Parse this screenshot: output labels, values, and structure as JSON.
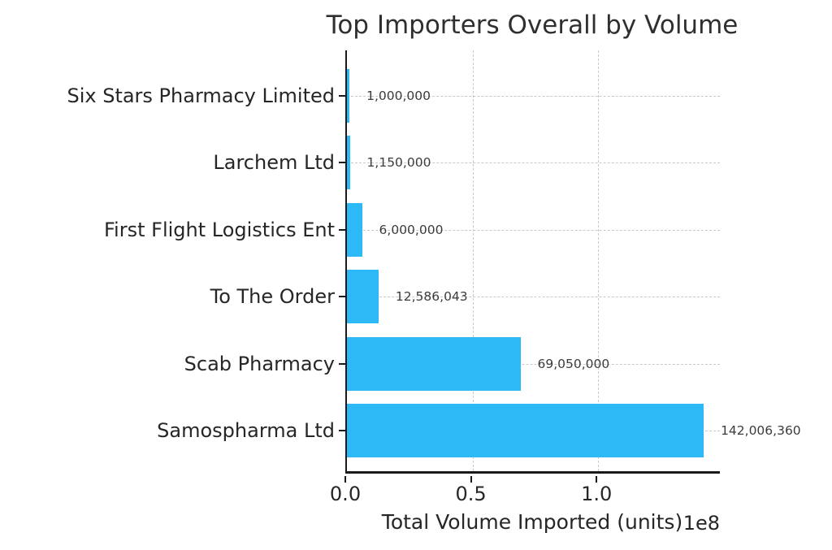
{
  "chart_data": {
    "type": "bar",
    "orientation": "horizontal",
    "title": "Top Importers Overall by Volume",
    "xlabel": "Total Volume Imported (units)",
    "scale_offset_label": "1e8",
    "legend": "none",
    "grid": "dashed gridlines on both axes",
    "bar_color": "#2db8f6",
    "axis_color": "#1a1a1a",
    "gridline_color": "#c9c9c9",
    "xlim": [
      0,
      149100000
    ],
    "x_ticks": [
      {
        "value": 0,
        "label": "0.0"
      },
      {
        "value": 50000000,
        "label": "0.5"
      },
      {
        "value": 100000000,
        "label": "1.0"
      }
    ],
    "categories": [
      "Six Stars Pharmacy Limited",
      "Larchem Ltd",
      "First Flight Logistics Ent",
      "To The Order",
      "Scab Pharmacy",
      "Samospharma Ltd"
    ],
    "values": [
      1000000,
      1150000,
      6000000,
      12586043,
      69050000,
      142006360
    ],
    "value_labels": [
      "1,000,000",
      "1,150,000",
      "6,000,000",
      "12,586,043",
      "69,050,000",
      "142,006,360"
    ]
  }
}
